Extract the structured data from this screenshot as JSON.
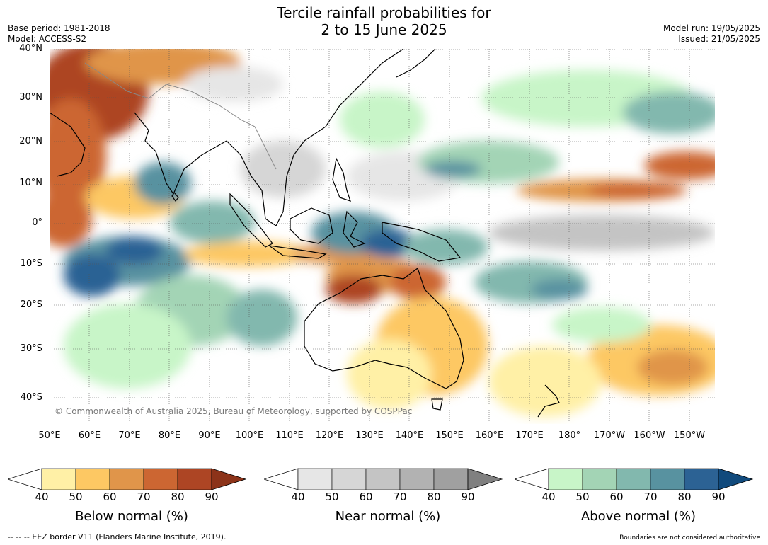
{
  "header": {
    "title_line1": "Tercile rainfall probabilities for",
    "title_line2": "2 to 15 June 2025",
    "base_period": "Base period: 1981-2018",
    "model": "Model: ACCESS-S2",
    "model_run": "Model run: 19/05/2025",
    "issued": "Issued: 21/05/2025"
  },
  "map": {
    "lat_labels": [
      "40°N",
      "30°N",
      "20°N",
      "10°N",
      "0°",
      "10°S",
      "20°S",
      "30°S",
      "40°S"
    ],
    "lon_labels": [
      "50°E",
      "60°E",
      "70°E",
      "80°E",
      "90°E",
      "100°E",
      "110°E",
      "120°E",
      "130°E",
      "140°E",
      "150°E",
      "160°E",
      "170°E",
      "180°",
      "170°W",
      "160°W",
      "150°W"
    ],
    "copyright": "© Commonwealth of Australia 2025, Bureau of Meteorology, supported by COSPPac"
  },
  "colorbars": [
    {
      "label": "Below normal (%)",
      "ticks": [
        "40",
        "50",
        "60",
        "70",
        "80",
        "90"
      ],
      "colors": [
        "#fff0a6",
        "#fdc863",
        "#e0954a",
        "#cc6632",
        "#ad4524"
      ],
      "extend_color": "#8c3319"
    },
    {
      "label": "Near normal (%)",
      "ticks": [
        "40",
        "50",
        "60",
        "70",
        "80",
        "90"
      ],
      "colors": [
        "#e6e6e6",
        "#d6d6d6",
        "#c4c4c4",
        "#b2b2b2",
        "#a0a0a0"
      ],
      "extend_color": "#808080"
    },
    {
      "label": "Above normal (%)",
      "ticks": [
        "40",
        "50",
        "60",
        "70",
        "80",
        "90"
      ],
      "colors": [
        "#c8f5c8",
        "#a3d4b5",
        "#82b8ae",
        "#5892a0",
        "#2c6294"
      ],
      "extend_color": "#114a7c"
    }
  ],
  "footer": {
    "eez_note": "--  --  -- EEZ border V11 (Flanders Marine Institute, 2019).",
    "disclaimer": "Boundaries are not considered authoritative"
  }
}
